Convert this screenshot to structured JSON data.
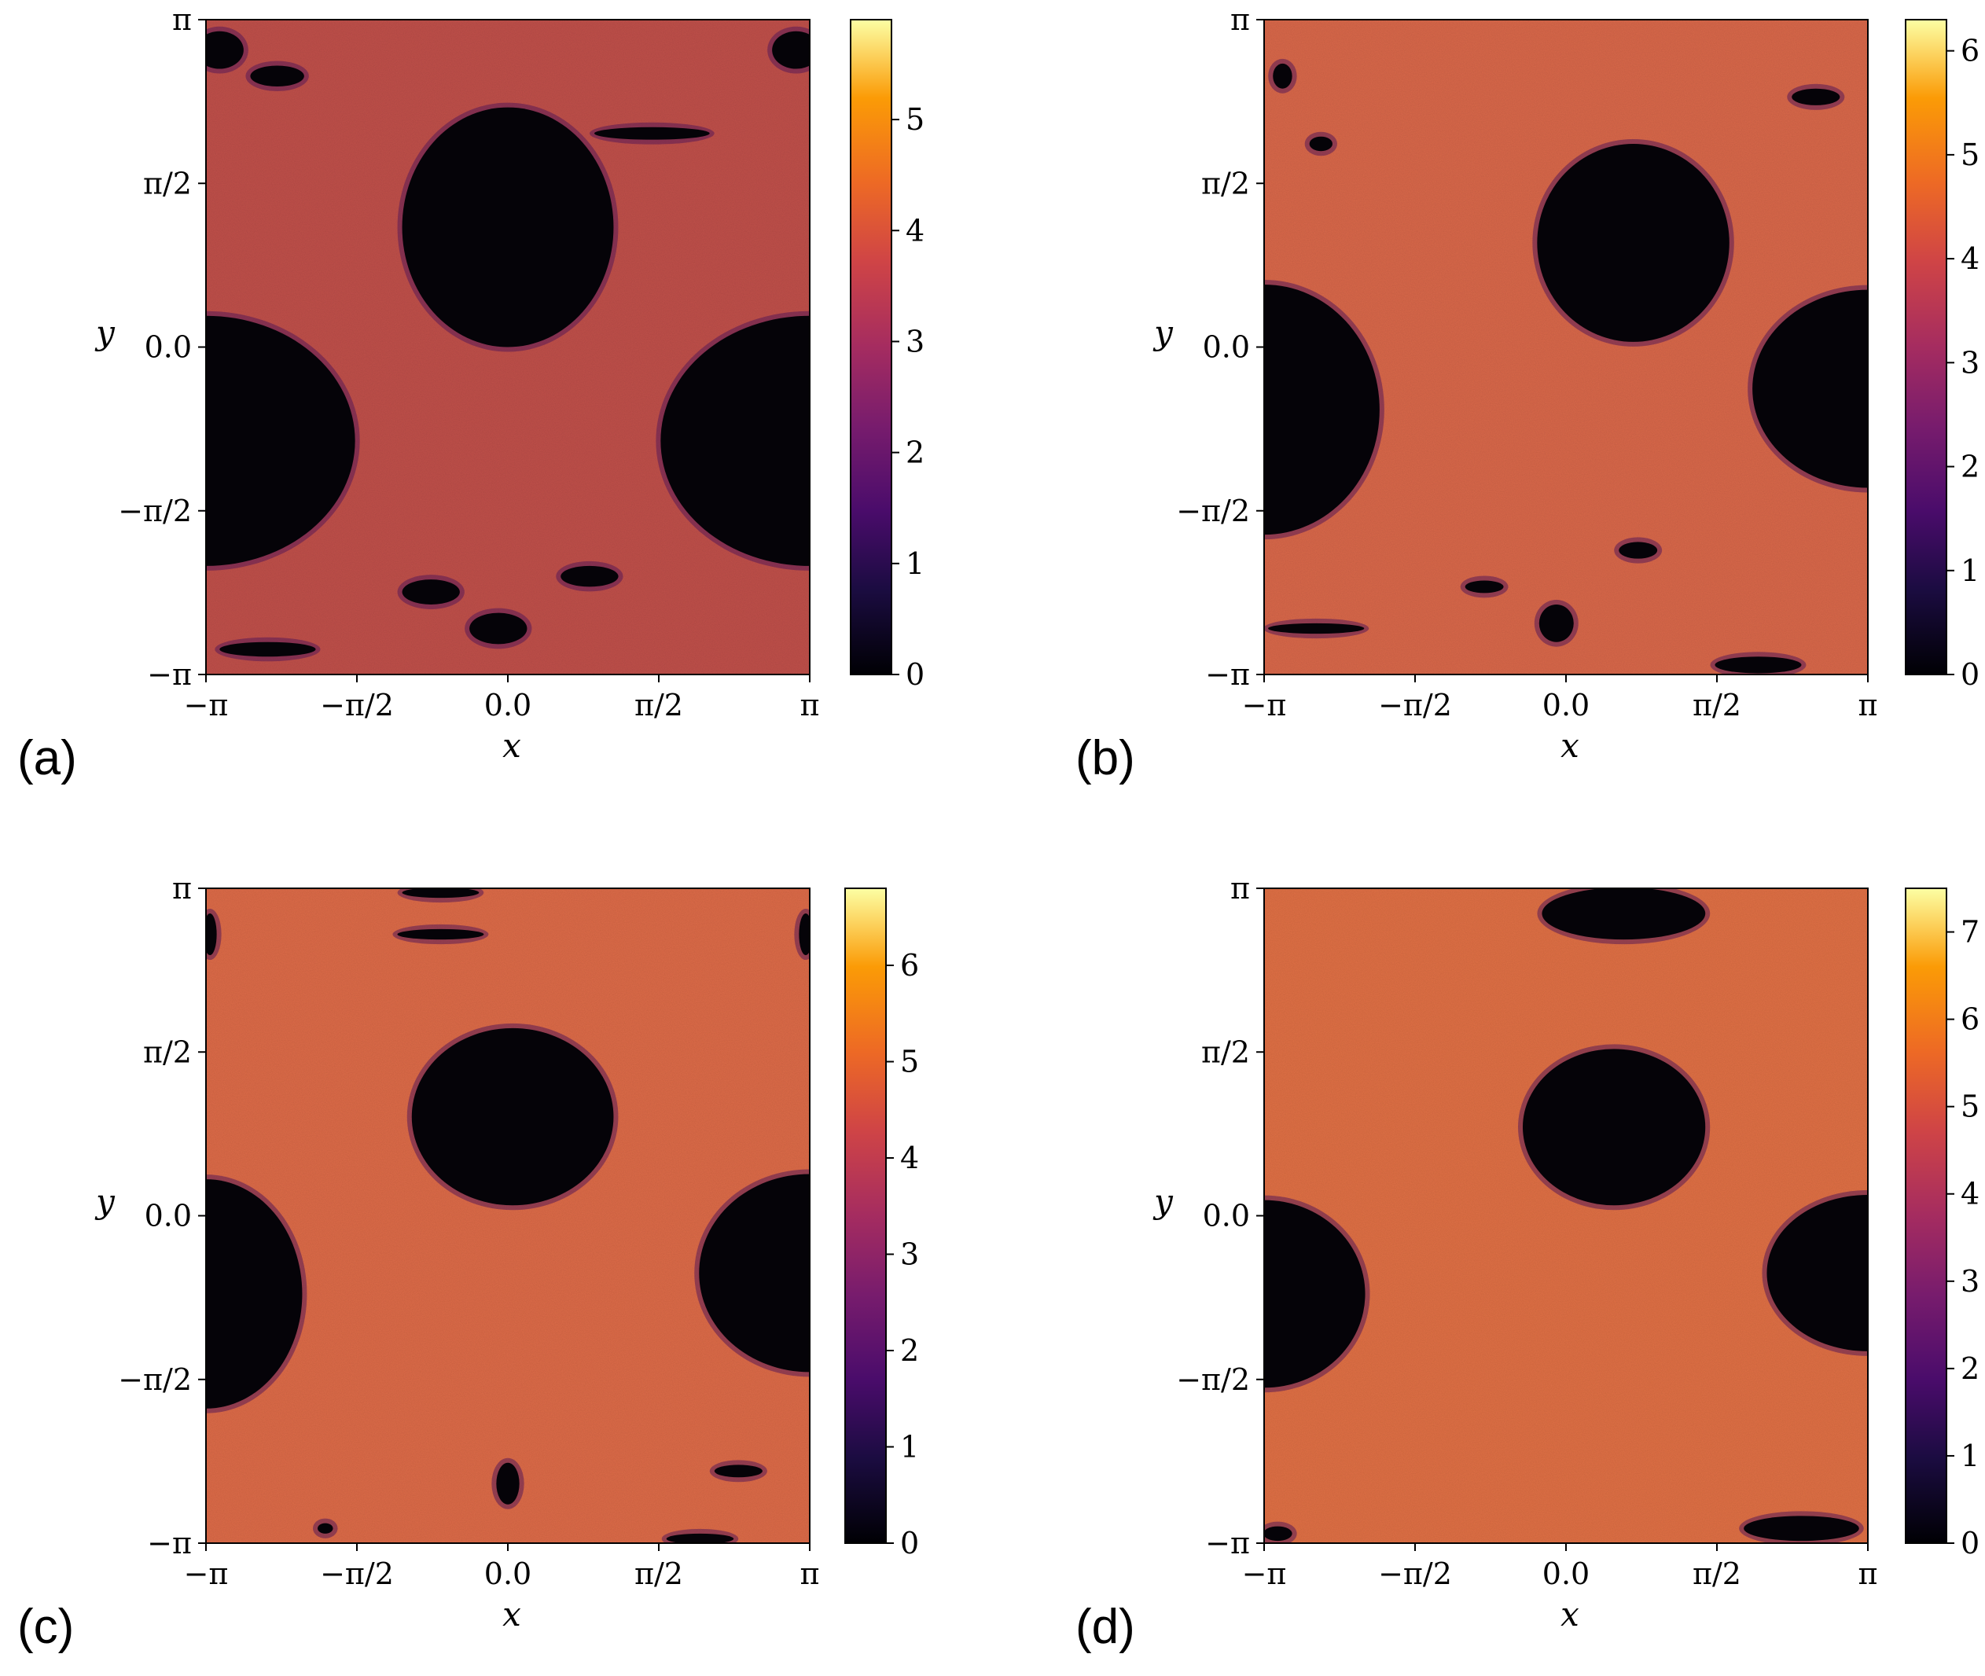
{
  "chart_data": [
    {
      "type": "heatmap",
      "panel_label": "(a)",
      "xlabel": "x",
      "ylabel": "y",
      "xlim": [
        "-π",
        "π"
      ],
      "ylim": [
        "-π",
        "π"
      ],
      "x_ticks": [
        "−π",
        "−π/2",
        "0.0",
        "π/2",
        "π"
      ],
      "y_ticks": [
        "−π",
        "−π/2",
        "0.0",
        "π/2",
        "π"
      ],
      "colorbar": {
        "vmin": 0,
        "vmax": 5.9,
        "ticks": [
          "0",
          "1",
          "2",
          "3",
          "4",
          "5"
        ]
      },
      "colormap": "inferno",
      "background_value": 3.2,
      "background_color": "#c0504a",
      "islands": [
        {
          "cx": 0.0,
          "cy": 1.15,
          "rx": 1.1,
          "ry": 1.15
        },
        {
          "cx": -3.14,
          "cy": -0.9,
          "rx": 1.55,
          "ry": 1.2
        },
        {
          "cx": 3.14,
          "cy": -0.9,
          "rx": 1.55,
          "ry": 1.2
        },
        {
          "cx": -0.1,
          "cy": -2.7,
          "rx": 0.3,
          "ry": 0.15
        },
        {
          "cx": 0.85,
          "cy": -2.2,
          "rx": 0.3,
          "ry": 0.1
        },
        {
          "cx": -0.8,
          "cy": -2.35,
          "rx": 0.3,
          "ry": 0.12
        },
        {
          "cx": -2.4,
          "cy": 2.6,
          "rx": 0.28,
          "ry": 0.1
        },
        {
          "cx": 1.5,
          "cy": 2.05,
          "rx": 0.6,
          "ry": 0.06
        },
        {
          "cx": -3.0,
          "cy": 2.85,
          "rx": 0.25,
          "ry": 0.18
        },
        {
          "cx": 3.0,
          "cy": 2.85,
          "rx": 0.25,
          "ry": 0.18
        },
        {
          "cx": -2.5,
          "cy": -2.9,
          "rx": 0.5,
          "ry": 0.07
        }
      ]
    },
    {
      "type": "heatmap",
      "panel_label": "(b)",
      "xlabel": "x",
      "ylabel": "y",
      "xlim": [
        "-π",
        "π"
      ],
      "ylim": [
        "-π",
        "π"
      ],
      "x_ticks": [
        "−π",
        "−π/2",
        "0.0",
        "π/2",
        "π"
      ],
      "y_ticks": [
        "−π",
        "−π/2",
        "0.0",
        "π/2",
        "π"
      ],
      "colorbar": {
        "vmin": 0,
        "vmax": 6.3,
        "ticks": [
          "0",
          "1",
          "2",
          "3",
          "4",
          "5",
          "6"
        ]
      },
      "colormap": "inferno",
      "background_value": 3.8,
      "background_color": "#d9684a",
      "islands": [
        {
          "cx": 0.7,
          "cy": 1.0,
          "rx": 1.0,
          "ry": 0.95
        },
        {
          "cx": -3.14,
          "cy": -0.6,
          "rx": 1.2,
          "ry": 1.2
        },
        {
          "cx": 3.14,
          "cy": -0.4,
          "rx": 1.2,
          "ry": 0.95
        },
        {
          "cx": -0.1,
          "cy": -2.65,
          "rx": 0.18,
          "ry": 0.18
        },
        {
          "cx": 0.75,
          "cy": -1.95,
          "rx": 0.2,
          "ry": 0.08
        },
        {
          "cx": -0.85,
          "cy": -2.3,
          "rx": 0.2,
          "ry": 0.06
        },
        {
          "cx": 2.6,
          "cy": 2.4,
          "rx": 0.25,
          "ry": 0.08
        },
        {
          "cx": -2.55,
          "cy": 1.95,
          "rx": 0.12,
          "ry": 0.07
        },
        {
          "cx": -2.95,
          "cy": 2.6,
          "rx": 0.1,
          "ry": 0.12
        },
        {
          "cx": 2.0,
          "cy": -3.05,
          "rx": 0.45,
          "ry": 0.08
        },
        {
          "cx": -2.6,
          "cy": -2.7,
          "rx": 0.5,
          "ry": 0.05
        }
      ]
    },
    {
      "type": "heatmap",
      "panel_label": "(c)",
      "xlabel": "x",
      "ylabel": "y",
      "xlim": [
        "-π",
        "π"
      ],
      "ylim": [
        "-π",
        "π"
      ],
      "x_ticks": [
        "−π",
        "−π/2",
        "0.0",
        "π/2",
        "π"
      ],
      "y_ticks": [
        "−π",
        "−π/2",
        "0.0",
        "π/2",
        "π"
      ],
      "colorbar": {
        "vmin": 0,
        "vmax": 6.8,
        "ticks": [
          "0",
          "1",
          "2",
          "3",
          "4",
          "5",
          "6"
        ]
      },
      "colormap": "inferno",
      "background_value": 3.9,
      "background_color": "#dd6b48",
      "islands": [
        {
          "cx": 0.05,
          "cy": 0.95,
          "rx": 1.05,
          "ry": 0.85
        },
        {
          "cx": -3.14,
          "cy": -0.75,
          "rx": 1.0,
          "ry": 1.1
        },
        {
          "cx": 3.14,
          "cy": -0.55,
          "rx": 1.15,
          "ry": 0.95
        },
        {
          "cx": 0.0,
          "cy": -2.57,
          "rx": 0.12,
          "ry": 0.2
        },
        {
          "cx": -0.7,
          "cy": 2.7,
          "rx": 0.45,
          "ry": 0.05
        },
        {
          "cx": -0.7,
          "cy": 3.1,
          "rx": 0.4,
          "ry": 0.05
        },
        {
          "cx": 2.0,
          "cy": -3.1,
          "rx": 0.35,
          "ry": 0.05
        },
        {
          "cx": 2.4,
          "cy": -2.45,
          "rx": 0.25,
          "ry": 0.06
        },
        {
          "cx": -1.9,
          "cy": -3.0,
          "rx": 0.08,
          "ry": 0.05
        },
        {
          "cx": -3.1,
          "cy": 2.7,
          "rx": 0.07,
          "ry": 0.2
        },
        {
          "cx": 3.1,
          "cy": 2.7,
          "rx": 0.07,
          "ry": 0.2
        }
      ]
    },
    {
      "type": "heatmap",
      "panel_label": "(d)",
      "xlabel": "x",
      "ylabel": "y",
      "xlim": [
        "-π",
        "π"
      ],
      "ylim": [
        "-π",
        "π"
      ],
      "x_ticks": [
        "−π",
        "−π/2",
        "0.0",
        "π/2",
        "π"
      ],
      "y_ticks": [
        "−π",
        "−π/2",
        "0.0",
        "π/2",
        "π"
      ],
      "colorbar": {
        "vmin": 0,
        "vmax": 7.5,
        "ticks": [
          "0",
          "1",
          "2",
          "3",
          "4",
          "5",
          "6",
          "7"
        ]
      },
      "colormap": "inferno",
      "background_value": 4.2,
      "background_color": "#e07045",
      "islands": [
        {
          "cx": 0.5,
          "cy": 0.85,
          "rx": 0.95,
          "ry": 0.75
        },
        {
          "cx": -3.14,
          "cy": -0.75,
          "rx": 1.05,
          "ry": 0.9
        },
        {
          "cx": 3.14,
          "cy": -0.55,
          "rx": 1.05,
          "ry": 0.75
        },
        {
          "cx": 0.6,
          "cy": 2.9,
          "rx": 0.85,
          "ry": 0.25
        },
        {
          "cx": 2.45,
          "cy": -3.0,
          "rx": 0.6,
          "ry": 0.12
        },
        {
          "cx": -3.0,
          "cy": -3.05,
          "rx": 0.15,
          "ry": 0.07
        }
      ]
    }
  ]
}
